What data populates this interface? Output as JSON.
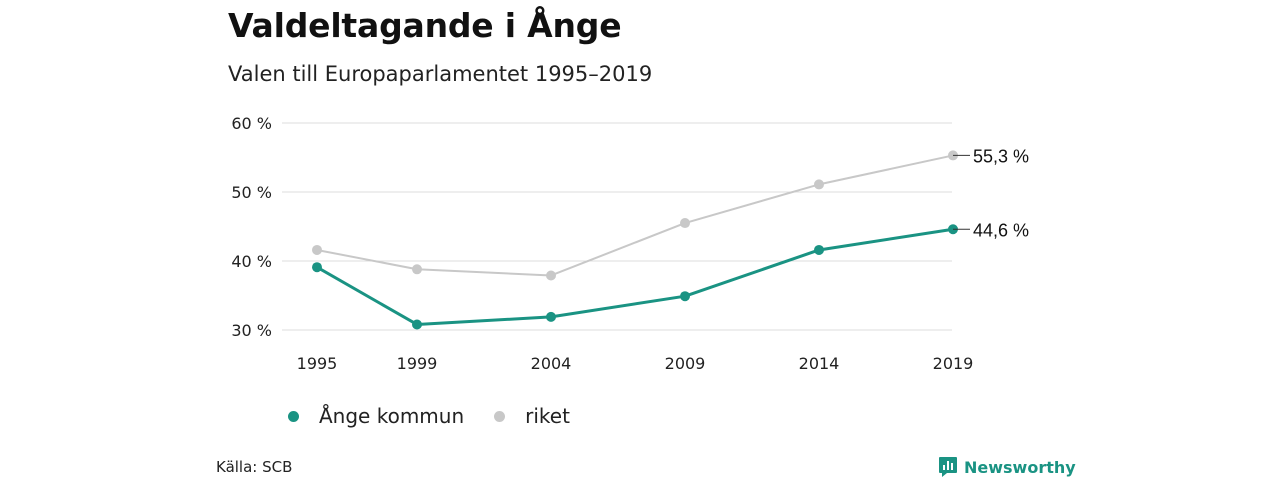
{
  "header": {
    "title": "Valdeltagande i Ånge",
    "subtitle": "Valen till Europaparlamentet 1995–2019"
  },
  "chart_data": {
    "type": "line",
    "title": "Valdeltagande i Ånge",
    "subtitle": "Valen till Europaparlamentet 1995–2019",
    "xlabel": "",
    "ylabel": "",
    "x": [
      1995,
      1999,
      2004,
      2009,
      2014,
      2019
    ],
    "x_tick_labels": [
      "1995",
      "1999",
      "2004",
      "2009",
      "2014",
      "2019"
    ],
    "ylim": [
      30,
      60
    ],
    "y_ticks": [
      30,
      40,
      50,
      60
    ],
    "y_tick_labels": [
      "30 %",
      "40 %",
      "50 %",
      "60 %"
    ],
    "grid": true,
    "legend_position": "bottom-left",
    "series": [
      {
        "name": "Ånge kommun",
        "color": "#1a9383",
        "values": [
          39.1,
          30.8,
          31.9,
          34.9,
          41.6,
          44.6
        ],
        "end_label": "44,6 %"
      },
      {
        "name": "riket",
        "color": "#c8c8c8",
        "values": [
          41.6,
          38.8,
          37.9,
          45.5,
          51.1,
          55.3
        ],
        "end_label": "55,3 %"
      }
    ]
  },
  "footer": {
    "source": "Källa: SCB",
    "brand": "Newsworthy",
    "brand_color": "#1a9383",
    "brand_icon": "newsworthy-logo-icon"
  }
}
